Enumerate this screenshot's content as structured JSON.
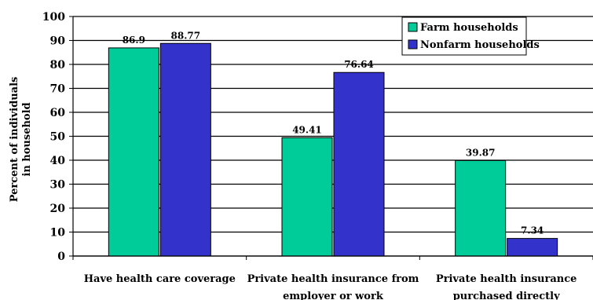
{
  "chart_data": {
    "type": "bar",
    "ylabel": "Percent of individuals in household",
    "ylabel_lines": [
      "Percent of individuals",
      "in household"
    ],
    "ylim": [
      0,
      100
    ],
    "yticks": [
      0,
      10,
      20,
      30,
      40,
      50,
      60,
      70,
      80,
      90,
      100
    ],
    "grid": "horizontal",
    "legend_position": "top-right",
    "categories": [
      [
        "Have health care coverage"
      ],
      [
        "Private health insurance from",
        "employer or work"
      ],
      [
        "Private health insurance",
        "purchased directly"
      ]
    ],
    "series": [
      {
        "name": "Farm households",
        "color": "#00CC99",
        "values": [
          86.9,
          49.41,
          39.87
        ],
        "labels": [
          "86.9",
          "49.41",
          "39.87"
        ]
      },
      {
        "name": "Nonfarm households",
        "color": "#3333CC",
        "values": [
          88.77,
          76.64,
          7.34
        ],
        "labels": [
          "88.77",
          "76.64",
          "7.34"
        ]
      }
    ]
  }
}
